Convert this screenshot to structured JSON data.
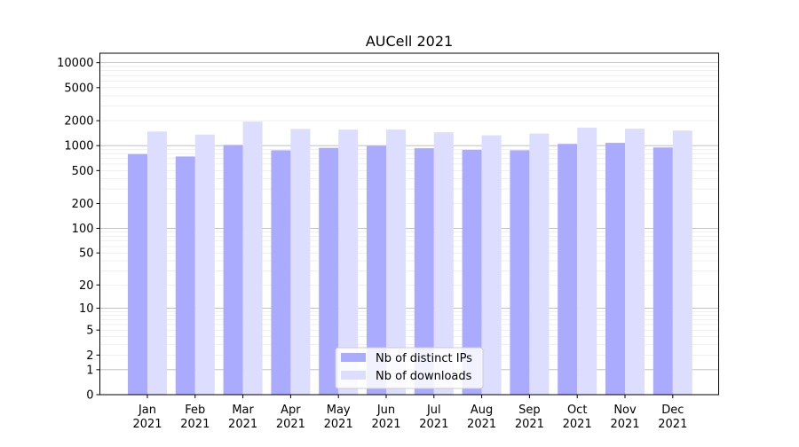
{
  "chart_data": {
    "type": "bar",
    "title": "AUCell 2021",
    "xlabel": "",
    "ylabel": "",
    "y_scale": "symlog",
    "ylim": [
      0,
      13000
    ],
    "categories": [
      [
        "Jan",
        "2021"
      ],
      [
        "Feb",
        "2021"
      ],
      [
        "Mar",
        "2021"
      ],
      [
        "Apr",
        "2021"
      ],
      [
        "May",
        "2021"
      ],
      [
        "Jun",
        "2021"
      ],
      [
        "Jul",
        "2021"
      ],
      [
        "Aug",
        "2021"
      ],
      [
        "Sep",
        "2021"
      ],
      [
        "Oct",
        "2021"
      ],
      [
        "Nov",
        "2021"
      ],
      [
        "Dec",
        "2021"
      ]
    ],
    "yticks": [
      {
        "value": 0,
        "label": "0"
      },
      {
        "value": 1,
        "label": "1"
      },
      {
        "value": 2,
        "label": "2"
      },
      {
        "value": 5,
        "label": "5"
      },
      {
        "value": 10,
        "label": "10"
      },
      {
        "value": 20,
        "label": "20"
      },
      {
        "value": 50,
        "label": "50"
      },
      {
        "value": 100,
        "label": "100"
      },
      {
        "value": 200,
        "label": "200"
      },
      {
        "value": 500,
        "label": "500"
      },
      {
        "value": 1000,
        "label": "1000"
      },
      {
        "value": 2000,
        "label": "2000"
      },
      {
        "value": 5000,
        "label": "5000"
      },
      {
        "value": 10000,
        "label": "10000"
      }
    ],
    "series": [
      {
        "name": "Nb of distinct IPs",
        "color": "#aaaaff",
        "values": [
          790,
          740,
          1020,
          880,
          940,
          990,
          930,
          890,
          880,
          1050,
          1080,
          950
        ]
      },
      {
        "name": "Nb of downloads",
        "color": "#ddddff",
        "values": [
          1480,
          1360,
          1950,
          1590,
          1560,
          1560,
          1450,
          1330,
          1400,
          1650,
          1600,
          1520
        ]
      }
    ],
    "grid": true,
    "legend_position": "lower-center"
  }
}
